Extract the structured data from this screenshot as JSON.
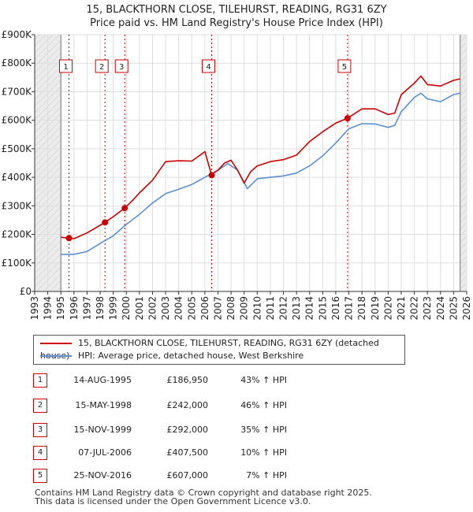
{
  "title": {
    "line1": "15, BLACKTHORN CLOSE, TILEHURST, READING, RG31 6ZY",
    "line2": "Price paid vs. HM Land Registry's House Price Index (HPI)"
  },
  "chart_data": {
    "type": "line",
    "title": "15, BLACKTHORN CLOSE, TILEHURST, READING, RG31 6ZY — Price paid vs. HM Land Registry's House Price Index (HPI)",
    "xlim": [
      1993,
      2026
    ],
    "ylim": [
      0,
      900000
    ],
    "x_ticks": [
      1993,
      1994,
      1995,
      1996,
      1997,
      1998,
      1999,
      2000,
      2001,
      2002,
      2003,
      2004,
      2005,
      2006,
      2007,
      2008,
      2009,
      2010,
      2011,
      2012,
      2013,
      2014,
      2015,
      2016,
      2017,
      2018,
      2019,
      2020,
      2021,
      2022,
      2023,
      2024,
      2025,
      2026
    ],
    "y_ticks": [
      0,
      100000,
      200000,
      300000,
      400000,
      500000,
      600000,
      700000,
      800000,
      900000
    ],
    "y_tick_labels": [
      "£0",
      "£100K",
      "£200K",
      "£300K",
      "£400K",
      "£500K",
      "£600K",
      "£700K",
      "£800K",
      "£900K"
    ],
    "data_start": 1995.0,
    "data_end": 2025.5,
    "grid": true,
    "legend_position": "below",
    "series": [
      {
        "name": "15, BLACKTHORN CLOSE, TILEHURST, READING, RG31 6ZY (detached house)",
        "color": "#cc0000",
        "x": [
          1995.0,
          1995.62,
          1996.0,
          1997.0,
          1998.37,
          1999.0,
          1999.88,
          2000.5,
          2001.0,
          2002.0,
          2003.0,
          2004.0,
          2005.0,
          2006.0,
          2006.5,
          2007.0,
          2007.5,
          2008.0,
          2008.5,
          2009.0,
          2009.5,
          2010.0,
          2011.0,
          2012.0,
          2013.0,
          2014.0,
          2015.0,
          2016.0,
          2016.9,
          2017.5,
          2018.0,
          2019.0,
          2020.0,
          2020.5,
          2021.0,
          2022.0,
          2022.5,
          2023.0,
          2024.0,
          2025.0,
          2025.5
        ],
        "values": [
          190000,
          186950,
          185000,
          205000,
          242000,
          262000,
          292000,
          320000,
          345000,
          390000,
          455000,
          458000,
          457000,
          490000,
          410000,
          425000,
          450000,
          460000,
          425000,
          380000,
          420000,
          440000,
          455000,
          462000,
          478000,
          525000,
          560000,
          590000,
          607000,
          625000,
          640000,
          640000,
          620000,
          625000,
          690000,
          730000,
          755000,
          725000,
          720000,
          740000,
          745000
        ]
      },
      {
        "name": "HPI: Average price, detached house, West Berkshire",
        "color": "#5b8fd0",
        "x": [
          1995.0,
          1996.0,
          1997.0,
          1998.0,
          1999.0,
          2000.0,
          2001.0,
          2002.0,
          2003.0,
          2004.0,
          2005.0,
          2006.0,
          2007.0,
          2007.75,
          2008.5,
          2009.25,
          2010.0,
          2011.0,
          2012.0,
          2013.0,
          2014.0,
          2015.0,
          2016.0,
          2017.0,
          2018.0,
          2019.0,
          2020.0,
          2020.5,
          2021.0,
          2022.0,
          2022.5,
          2023.0,
          2024.0,
          2025.0,
          2025.5
        ],
        "values": [
          130000,
          130000,
          140000,
          168000,
          195000,
          235000,
          270000,
          310000,
          343000,
          358000,
          375000,
          400000,
          425000,
          448000,
          425000,
          360000,
          395000,
          400000,
          405000,
          415000,
          440000,
          475000,
          520000,
          570000,
          588000,
          587000,
          575000,
          582000,
          630000,
          680000,
          695000,
          675000,
          665000,
          690000,
          695000
        ]
      }
    ],
    "sales": [
      {
        "label": "1",
        "x": 1995.62,
        "value": 186950
      },
      {
        "label": "2",
        "x": 1998.37,
        "value": 242000
      },
      {
        "label": "3",
        "x": 1999.88,
        "value": 292000
      },
      {
        "label": "4",
        "x": 2006.52,
        "value": 407500
      },
      {
        "label": "5",
        "x": 2016.9,
        "value": 607000
      }
    ],
    "annotations": [
      {
        "label": "1",
        "x": 1995.62
      },
      {
        "label": "2",
        "x": 1998.37
      },
      {
        "label": "3",
        "x": 1999.88
      },
      {
        "label": "4",
        "x": 2006.52
      },
      {
        "label": "5",
        "x": 2016.9
      }
    ]
  },
  "legend": {
    "property_label": "15, BLACKTHORN CLOSE, TILEHURST, READING, RG31 6ZY (detached house)",
    "hpi_label": "HPI: Average price, detached house, West Berkshire",
    "property_color": "#cc0000",
    "hpi_color": "#5b8fd0"
  },
  "transactions": [
    {
      "num": "1",
      "date": "14-AUG-1995",
      "price": "£186,950",
      "hpi": "43% ↑ HPI"
    },
    {
      "num": "2",
      "date": "15-MAY-1998",
      "price": "£242,000",
      "hpi": "46% ↑ HPI"
    },
    {
      "num": "3",
      "date": "15-NOV-1999",
      "price": "£292,000",
      "hpi": "35% ↑ HPI"
    },
    {
      "num": "4",
      "date": "07-JUL-2006",
      "price": "£407,500",
      "hpi": "10% ↑ HPI"
    },
    {
      "num": "5",
      "date": "25-NOV-2016",
      "price": "£607,000",
      "hpi": "7% ↑ HPI"
    }
  ],
  "footer": {
    "line1": "Contains HM Land Registry data © Crown copyright and database right 2025.",
    "line2": "This data is licensed under the Open Government Licence v3.0."
  }
}
